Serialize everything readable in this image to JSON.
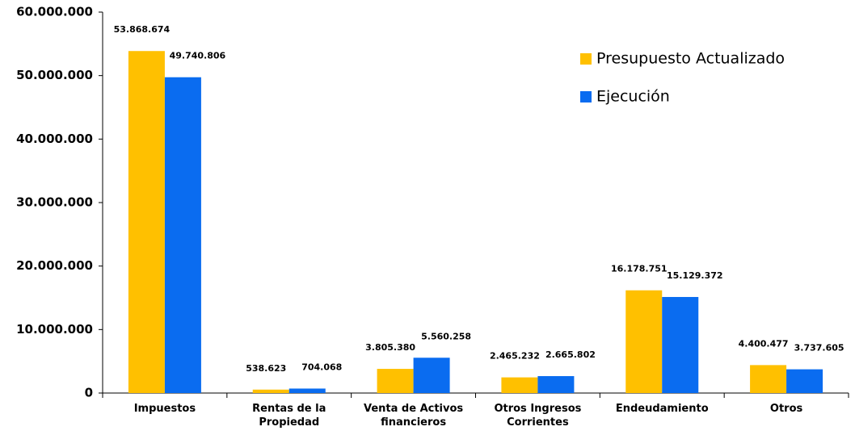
{
  "chart_data": {
    "type": "bar",
    "categories": [
      "Impuestos",
      "Rentas de la Propiedad",
      "Venta de Activos financieros",
      "Otros Ingresos Corrientes",
      "Endeudamiento",
      "Otros"
    ],
    "series": [
      {
        "name": "Presupuesto Actualizado",
        "color": "#FFC000",
        "values": [
          53868674,
          538623,
          3805380,
          2465232,
          16178751,
          4400477
        ],
        "value_labels": [
          "53.868.674",
          "538.623",
          "3.805.380",
          "2.465.232",
          "16.178.751",
          "4.400.477"
        ]
      },
      {
        "name": "Ejecución",
        "color": "#0A6CF0",
        "values": [
          49740806,
          704068,
          5560258,
          2665802,
          15129372,
          3737605
        ],
        "value_labels": [
          "49.740.806",
          "704.068",
          "5.560.258",
          "2.665.802",
          "15.129.372",
          "3.737.605"
        ]
      }
    ],
    "ylim": [
      0,
      60000000
    ],
    "yticks": [
      0,
      {
        "value": 10000000,
        "label": "10.000.000"
      },
      {
        "value": 20000000,
        "label": "20.000.000"
      },
      {
        "value": 30000000,
        "label": "30.000.000"
      },
      {
        "value": 40000000,
        "label": "40.000.000"
      },
      {
        "value": 50000000,
        "label": "50.000.000"
      },
      {
        "value": 60000000,
        "label": "60.000.000"
      }
    ],
    "grid": false,
    "legend": "upper right"
  }
}
